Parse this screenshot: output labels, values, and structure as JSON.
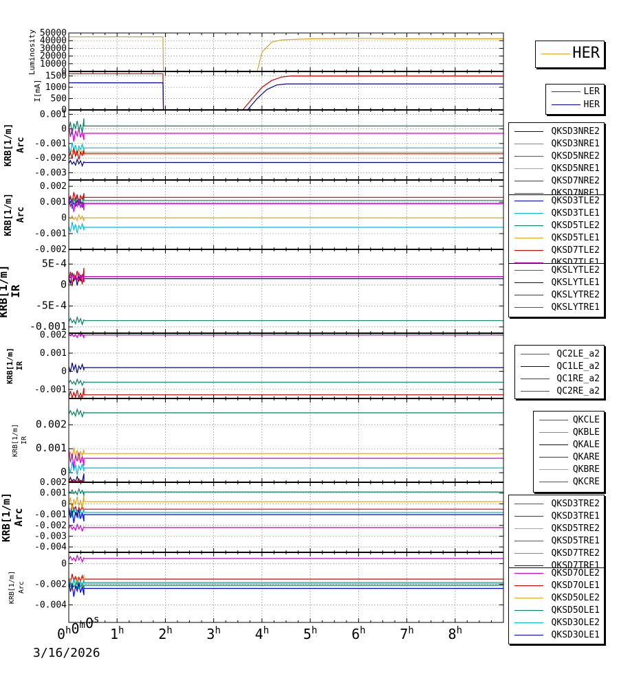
{
  "chart_data": {
    "type": "line",
    "title": "",
    "xlabel": "",
    "x_tick_labels": [
      "0h0m0s",
      "1h",
      "2h",
      "3h",
      "4h",
      "5h",
      "6h",
      "7h",
      "8h"
    ],
    "x_range_hours": [
      0,
      9
    ],
    "date_label": "3/16/2026",
    "panels": [
      {
        "ylabel": "Luminosity",
        "ylim": [
          0,
          50000
        ],
        "ytick_labels": [
          "0",
          "10000",
          "20000",
          "30000",
          "40000",
          "50000"
        ],
        "yticks": [
          0,
          10000,
          20000,
          30000,
          40000,
          50000
        ],
        "series": [
          {
            "name": "HER",
            "color": "#daa520",
            "t": [
              0,
              1.95,
              1.96,
              3.9,
              4.0,
              4.2,
              4.4,
              5,
              6,
              7,
              8,
              9
            ],
            "v": [
              45000,
              45000,
              0,
              0,
              25000,
              38000,
              41000,
              42500,
              43000,
              42500,
              42500,
              42500
            ]
          }
        ]
      },
      {
        "ylabel": "I[mA]",
        "ylim": [
          0,
          1700
        ],
        "ytick_labels": [
          "0",
          "500",
          "1000",
          "1500"
        ],
        "yticks": [
          0,
          500,
          1000,
          1500
        ],
        "series": [
          {
            "name": "LER",
            "color": "#cc0000",
            "t": [
              0,
              1.95,
              1.96,
              3.6,
              3.8,
              4.0,
              4.2,
              4.4,
              4.6,
              9
            ],
            "v": [
              1600,
              1600,
              0,
              0,
              500,
              1000,
              1300,
              1450,
              1500,
              1500
            ]
          },
          {
            "name": "HER",
            "color": "#0000aa",
            "t": [
              0,
              1.95,
              1.96,
              3.7,
              3.9,
              4.1,
              4.3,
              4.5,
              9
            ],
            "v": [
              1200,
              1200,
              0,
              0,
              500,
              900,
              1100,
              1150,
              1150
            ]
          }
        ]
      },
      {
        "ylabel": "KRB[1/m]",
        "ylabel2": "Arc",
        "ylim": [
          -0.0035,
          0.0013
        ],
        "ytick_labels": [
          "-0.003",
          "-0.002",
          "-0.001",
          "0",
          "0.001"
        ],
        "yticks": [
          -0.003,
          -0.002,
          -0.001,
          0,
          0.001
        ],
        "series": [
          {
            "name": "QKSD3NRE2",
            "color": "#000080",
            "settle": -0.0023
          },
          {
            "name": "QKSD3NRE1",
            "color": "#00bcd4",
            "settle": -0.0013
          },
          {
            "name": "QKSD5NRE2",
            "color": "#008060",
            "settle": 0.0002
          },
          {
            "name": "QKSD5NRE1",
            "color": "#daa520",
            "settle": -0.0016
          },
          {
            "name": "QKSD7NRE2",
            "color": "#cc0000",
            "settle": -0.0017
          },
          {
            "name": "QKSD7NRE1",
            "color": "#cc00cc",
            "settle": -0.0003
          }
        ]
      },
      {
        "ylabel": "KRB[1/m]",
        "ylabel2": "Arc",
        "ylim": [
          -0.002,
          0.0024
        ],
        "ytick_labels": [
          "-0.002",
          "-0.001",
          "0",
          "0.001",
          "0.002"
        ],
        "yticks": [
          -0.002,
          -0.001,
          0,
          0.001,
          0.002
        ],
        "series": [
          {
            "name": "QKSD3TLE2",
            "color": "#0000cc",
            "settle": 0.0009
          },
          {
            "name": "QKSD3TLE1",
            "color": "#00bcd4",
            "settle": -0.0006
          },
          {
            "name": "QKSD5TLE2",
            "color": "#008060",
            "settle": 0.0011
          },
          {
            "name": "QKSD5TLE1",
            "color": "#daa520",
            "settle": 0.0
          },
          {
            "name": "QKSD7TLE2",
            "color": "#cc0000",
            "settle": 0.0013
          },
          {
            "name": "QKSD7TLE1",
            "color": "#cc00cc",
            "settle": 0.0009
          }
        ]
      },
      {
        "ylabel": "KRB[1/m]",
        "ylabel2": "IR",
        "ylim": [
          -0.00115,
          0.00085
        ],
        "ytick_labels": [
          "-0.001",
          "-5E-4",
          "0",
          "5E-4"
        ],
        "yticks": [
          -0.001,
          -0.0005,
          0,
          0.0005
        ],
        "series": [
          {
            "name": "QKSLYTLE2",
            "color": "#008060",
            "settle": -0.00085
          },
          {
            "name": "QKSLYTLE1",
            "color": "#000080",
            "settle": 0.00015
          },
          {
            "name": "QKSLYTRE2",
            "color": "#cc0000",
            "settle": 0.0002
          },
          {
            "name": "QKSLYTRE1",
            "color": "#cc00cc",
            "settle": 0.0002
          }
        ]
      },
      {
        "ylabel": "KRB[1/m]",
        "ylabel2": "IR",
        "ylim": [
          -0.0015,
          0.0021
        ],
        "ytick_labels": [
          "-0.001",
          "0",
          "0.001",
          "0.002"
        ],
        "yticks": [
          -0.001,
          0,
          0.001,
          0.002
        ],
        "series": [
          {
            "name": "QC2LE_a2",
            "color": "#008060",
            "settle": -0.0006
          },
          {
            "name": "QC1LE_a2",
            "color": "#000080",
            "settle": 0.0002
          },
          {
            "name": "QC1RE_a2",
            "color": "#cc0000",
            "settle": -0.0013
          },
          {
            "name": "QC2RE_a2",
            "color": "#cc00cc",
            "settle": 0.002
          }
        ]
      },
      {
        "ylabel": "KRB[1/m]",
        "ylabel2": "IR",
        "ylim": [
          -0.0004,
          0.0031
        ],
        "ytick_labels": [
          "0",
          "0.001",
          "0.002"
        ],
        "yticks": [
          0,
          0.001,
          0.002
        ],
        "series": [
          {
            "name": "QKCLE",
            "color": "#008060",
            "settle": 0.0025
          },
          {
            "name": "QKBLE",
            "color": "#00bcd4",
            "settle": 0.0002
          },
          {
            "name": "QKALE",
            "color": "#000080",
            "settle": -0.0004
          },
          {
            "name": "QKARE",
            "color": "#cc0000",
            "settle": -0.0004
          },
          {
            "name": "QKBRE",
            "color": "#daa520",
            "settle": 0.0008
          },
          {
            "name": "QKCRE",
            "color": "#cc00cc",
            "settle": 0.0006
          }
        ]
      },
      {
        "ylabel": "KRB[1/m]",
        "ylabel2": "Arc",
        "ylim": [
          -0.0045,
          0.002
        ],
        "ytick_labels": [
          "-0.004",
          "-0.003",
          "-0.002",
          "-0.001",
          "0",
          "0.001",
          "0.002"
        ],
        "yticks": [
          -0.004,
          -0.003,
          -0.002,
          -0.001,
          0,
          0.001,
          0.002
        ],
        "series": [
          {
            "name": "QKSD3TRE2",
            "color": "#cc00cc",
            "settle": -0.0022
          },
          {
            "name": "QKSD3TRE1",
            "color": "#cc0000",
            "settle": -0.0005
          },
          {
            "name": "QKSD5TRE2",
            "color": "#daa520",
            "settle": 0.0002
          },
          {
            "name": "QKSD5TRE1",
            "color": "#008060",
            "settle": 0.0011
          },
          {
            "name": "QKSD7TRE2",
            "color": "#00bcd4",
            "settle": -0.0008
          },
          {
            "name": "QKSD7TRE1",
            "color": "#0000cc",
            "settle": -0.001
          }
        ]
      },
      {
        "ylabel": "KRB[1/m]",
        "ylabel2": "Arc",
        "ylim": [
          -0.0057,
          0.0011
        ],
        "ytick_labels": [
          "-0.004",
          "-0.002",
          "0"
        ],
        "yticks": [
          -0.004,
          -0.002,
          0
        ],
        "series": [
          {
            "name": "QKSD7OLE2",
            "color": "#cc00cc",
            "settle": 0.0005
          },
          {
            "name": "QKSD7OLE1",
            "color": "#cc0000",
            "settle": -0.0015
          },
          {
            "name": "QKSD5OLE2",
            "color": "#daa520",
            "settle": -0.0018
          },
          {
            "name": "QKSD5OLE1",
            "color": "#008060",
            "settle": -0.0021
          },
          {
            "name": "QKSD3OLE2",
            "color": "#00bcd4",
            "settle": -0.0019
          },
          {
            "name": "QKSD3OLE1",
            "color": "#0000cc",
            "settle": -0.0024
          }
        ]
      }
    ]
  }
}
